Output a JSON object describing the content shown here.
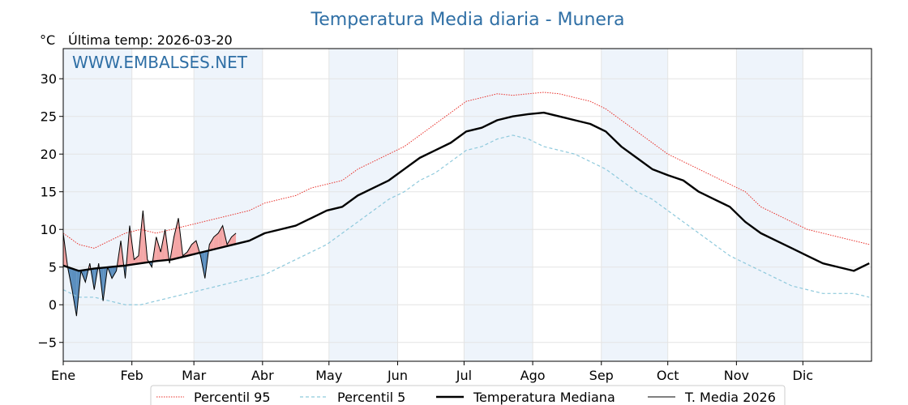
{
  "title": "Temperatura Media diaria - Munera",
  "unit": "°C",
  "last_temp_label": "Última temp: 2026-03-20",
  "watermark": "WWW.EMBALSES.NET",
  "colors": {
    "p95": "#e8302a",
    "p5": "#8ec9dc",
    "median": "#000000",
    "current": "#000000",
    "above_fill": "#f4a6a6",
    "below_fill": "#5b8fbf",
    "title": "#2f6fa5",
    "band": "#eef4fb"
  },
  "chart_data": {
    "type": "line",
    "title": "Temperatura Media diaria - Munera",
    "ylabel": "°C",
    "ylim": [
      -7.5,
      34
    ],
    "xlim": [
      1,
      366
    ],
    "yticks": [
      -5,
      0,
      5,
      10,
      15,
      20,
      25,
      30
    ],
    "months": [
      {
        "label": "Ene",
        "day": 1
      },
      {
        "label": "Feb",
        "day": 32
      },
      {
        "label": "Mar",
        "day": 60
      },
      {
        "label": "Abr",
        "day": 91
      },
      {
        "label": "May",
        "day": 121
      },
      {
        "label": "Jun",
        "day": 152
      },
      {
        "label": "Jul",
        "day": 182
      },
      {
        "label": "Ago",
        "day": 213
      },
      {
        "label": "Sep",
        "day": 244
      },
      {
        "label": "Oct",
        "day": 274
      },
      {
        "label": "Nov",
        "day": 305
      },
      {
        "label": "Dic",
        "day": 335
      }
    ],
    "grid": true,
    "legend_position": "bottom",
    "series": [
      {
        "name": "Percentil 95",
        "style": "dotted-red",
        "x": [
          1,
          8,
          15,
          22,
          29,
          36,
          43,
          50,
          57,
          64,
          71,
          78,
          85,
          92,
          99,
          106,
          113,
          120,
          127,
          134,
          141,
          148,
          155,
          162,
          169,
          176,
          183,
          190,
          197,
          204,
          211,
          218,
          225,
          232,
          239,
          246,
          253,
          260,
          267,
          274,
          281,
          288,
          295,
          302,
          309,
          316,
          323,
          330,
          337,
          344,
          351,
          358,
          365
        ],
        "y": [
          9.5,
          8.0,
          7.5,
          8.5,
          9.5,
          10.0,
          9.5,
          10.0,
          10.5,
          11.0,
          11.5,
          12.0,
          12.5,
          13.5,
          14.0,
          14.5,
          15.5,
          16.0,
          16.5,
          18.0,
          19.0,
          20.0,
          21.0,
          22.5,
          24.0,
          25.5,
          27.0,
          27.5,
          28.0,
          27.8,
          28.0,
          28.2,
          28.0,
          27.5,
          27.0,
          26.0,
          24.5,
          23.0,
          21.5,
          20.0,
          19.0,
          18.0,
          17.0,
          16.0,
          15.0,
          13.0,
          12.0,
          11.0,
          10.0,
          9.5,
          9.0,
          8.5,
          8.0
        ]
      },
      {
        "name": "Percentil 5",
        "style": "dashed-lightblue",
        "x": [
          1,
          8,
          15,
          22,
          29,
          36,
          43,
          50,
          57,
          64,
          71,
          78,
          85,
          92,
          99,
          106,
          113,
          120,
          127,
          134,
          141,
          148,
          155,
          162,
          169,
          176,
          183,
          190,
          197,
          204,
          211,
          218,
          225,
          232,
          239,
          246,
          253,
          260,
          267,
          274,
          281,
          288,
          295,
          302,
          309,
          316,
          323,
          330,
          337,
          344,
          351,
          358,
          365
        ],
        "y": [
          2.0,
          1.0,
          1.0,
          0.5,
          0.0,
          0.0,
          0.5,
          1.0,
          1.5,
          2.0,
          2.5,
          3.0,
          3.5,
          4.0,
          5.0,
          6.0,
          7.0,
          8.0,
          9.5,
          11.0,
          12.5,
          14.0,
          15.0,
          16.5,
          17.5,
          19.0,
          20.5,
          21.0,
          22.0,
          22.5,
          22.0,
          21.0,
          20.5,
          20.0,
          19.0,
          18.0,
          16.5,
          15.0,
          14.0,
          12.5,
          11.0,
          9.5,
          8.0,
          6.5,
          5.5,
          4.5,
          3.5,
          2.5,
          2.0,
          1.5,
          1.5,
          1.5,
          1.0
        ]
      },
      {
        "name": "Temperatura Mediana",
        "style": "thick-black",
        "x": [
          1,
          8,
          15,
          22,
          29,
          36,
          43,
          50,
          57,
          64,
          71,
          78,
          85,
          92,
          99,
          106,
          113,
          120,
          127,
          134,
          141,
          148,
          155,
          162,
          169,
          176,
          183,
          190,
          197,
          204,
          211,
          218,
          225,
          232,
          239,
          246,
          253,
          260,
          267,
          274,
          281,
          288,
          295,
          302,
          309,
          316,
          323,
          330,
          337,
          344,
          351,
          358,
          365
        ],
        "y": [
          5.2,
          4.5,
          4.8,
          5.0,
          5.2,
          5.5,
          5.8,
          6.0,
          6.5,
          7.0,
          7.5,
          8.0,
          8.5,
          9.5,
          10.0,
          10.5,
          11.5,
          12.5,
          13.0,
          14.5,
          15.5,
          16.5,
          18.0,
          19.5,
          20.5,
          21.5,
          23.0,
          23.5,
          24.5,
          25.0,
          25.3,
          25.5,
          25.0,
          24.5,
          24.0,
          23.0,
          21.0,
          19.5,
          18.0,
          17.2,
          16.5,
          15.0,
          14.0,
          13.0,
          11.0,
          9.5,
          8.5,
          7.5,
          6.5,
          5.5,
          5.0,
          4.5,
          5.5
        ]
      },
      {
        "name": "T. Media 2026",
        "style": "thin-black",
        "x": [
          1,
          3,
          5,
          7,
          9,
          11,
          13,
          15,
          17,
          19,
          21,
          23,
          25,
          27,
          29,
          31,
          33,
          35,
          37,
          39,
          41,
          43,
          45,
          47,
          49,
          51,
          53,
          55,
          57,
          59,
          61,
          63,
          65,
          67,
          69,
          71,
          73,
          75,
          77,
          79
        ],
        "y": [
          9.5,
          5.0,
          2.0,
          -1.5,
          4.5,
          3.0,
          5.5,
          2.0,
          5.5,
          0.5,
          5.0,
          3.5,
          4.5,
          8.5,
          3.5,
          10.5,
          6.0,
          6.5,
          12.5,
          6.0,
          5.0,
          9.0,
          7.0,
          10.0,
          5.5,
          9.0,
          11.5,
          6.5,
          7.0,
          8.0,
          8.5,
          6.5,
          3.5,
          8.0,
          9.0,
          9.5,
          10.5,
          8.0,
          9.0,
          9.5
        ]
      }
    ]
  }
}
